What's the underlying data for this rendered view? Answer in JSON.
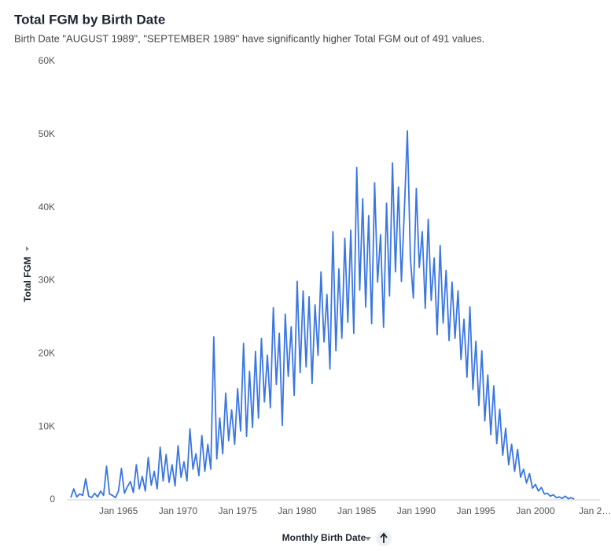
{
  "chart_data": {
    "type": "line",
    "title": "Total FGM by Birth Date",
    "subtitle": "Birth Date \"AUGUST 1989\", \"SEPTEMBER 1989\" have significantly higher Total FGM out of 491 values.",
    "x_label": "Monthly Birth Date",
    "y_label": "Total FGM",
    "x": [
      "1961-01",
      "1961-04",
      "1961-07",
      "1961-10",
      "1962-01",
      "1962-04",
      "1962-07",
      "1962-10",
      "1963-01",
      "1963-04",
      "1963-07",
      "1963-10",
      "1964-01",
      "1964-04",
      "1964-07",
      "1964-10",
      "1965-01",
      "1965-04",
      "1965-07",
      "1965-10",
      "1966-01",
      "1966-04",
      "1966-07",
      "1966-10",
      "1967-01",
      "1967-04",
      "1967-07",
      "1967-10",
      "1968-01",
      "1968-04",
      "1968-07",
      "1968-10",
      "1969-01",
      "1969-04",
      "1969-07",
      "1969-10",
      "1970-01",
      "1970-04",
      "1970-07",
      "1970-10",
      "1971-01",
      "1971-04",
      "1971-07",
      "1971-10",
      "1972-01",
      "1972-04",
      "1972-07",
      "1972-10",
      "1973-01",
      "1973-04",
      "1973-07",
      "1973-10",
      "1974-01",
      "1974-04",
      "1974-07",
      "1974-10",
      "1975-01",
      "1975-04",
      "1975-07",
      "1975-10",
      "1976-01",
      "1976-04",
      "1976-07",
      "1976-10",
      "1977-01",
      "1977-04",
      "1977-07",
      "1977-10",
      "1978-01",
      "1978-04",
      "1978-07",
      "1978-10",
      "1979-01",
      "1979-04",
      "1979-07",
      "1979-10",
      "1980-01",
      "1980-04",
      "1980-07",
      "1980-10",
      "1981-01",
      "1981-04",
      "1981-07",
      "1981-10",
      "1982-01",
      "1982-04",
      "1982-07",
      "1982-10",
      "1983-01",
      "1983-04",
      "1983-07",
      "1983-10",
      "1984-01",
      "1984-04",
      "1984-07",
      "1984-10",
      "1985-01",
      "1985-04",
      "1985-07",
      "1985-10",
      "1986-01",
      "1986-04",
      "1986-07",
      "1986-10",
      "1987-01",
      "1987-04",
      "1987-07",
      "1987-10",
      "1988-01",
      "1988-04",
      "1988-07",
      "1988-10",
      "1989-01",
      "1989-04",
      "1989-07",
      "1989-10",
      "1990-01",
      "1990-04",
      "1990-07",
      "1990-10",
      "1991-01",
      "1991-04",
      "1991-07",
      "1991-10",
      "1992-01",
      "1992-04",
      "1992-07",
      "1992-10",
      "1993-01",
      "1993-04",
      "1993-07",
      "1993-10",
      "1994-01",
      "1994-04",
      "1994-07",
      "1994-10",
      "1995-01",
      "1995-04",
      "1995-07",
      "1995-10",
      "1996-01",
      "1996-04",
      "1996-07",
      "1996-10",
      "1997-01",
      "1997-04",
      "1997-07",
      "1997-10",
      "1998-01",
      "1998-04",
      "1998-07",
      "1998-10",
      "1999-01",
      "1999-04",
      "1999-07",
      "1999-10",
      "2000-01",
      "2000-04",
      "2000-07",
      "2000-10",
      "2001-01",
      "2001-04",
      "2001-07",
      "2001-10",
      "2002-01",
      "2002-04",
      "2002-07",
      "2002-10",
      "2003-01",
      "2003-04"
    ],
    "series": [
      {
        "name": "Total FGM",
        "color": "#3b76e1",
        "values": [
          300,
          1500,
          400,
          800,
          600,
          2900,
          500,
          300,
          900,
          400,
          1200,
          600,
          4600,
          800,
          600,
          300,
          1200,
          4300,
          900,
          1800,
          2500,
          1000,
          4800,
          1500,
          3200,
          1200,
          5800,
          2000,
          3900,
          1500,
          7200,
          2600,
          6200,
          2400,
          4800,
          1900,
          7400,
          3100,
          5200,
          2600,
          9700,
          4200,
          6300,
          3300,
          8800,
          3900,
          7600,
          4200,
          22300,
          5600,
          11200,
          6300,
          14600,
          8100,
          12300,
          7600,
          15200,
          9400,
          21400,
          8700,
          17600,
          9900,
          20300,
          11200,
          22100,
          13400,
          19800,
          12600,
          26300,
          15800,
          22800,
          10200,
          25400,
          16900,
          23700,
          14300,
          29900,
          17400,
          28600,
          18200,
          27800,
          15900,
          26700,
          19800,
          31200,
          21600,
          28100,
          17900,
          36700,
          20400,
          31600,
          22100,
          35800,
          24300,
          36900,
          22800,
          45500,
          28700,
          41200,
          26400,
          38900,
          24100,
          43400,
          29800,
          36300,
          23600,
          40600,
          27900,
          46100,
          31200,
          42800,
          29900,
          39800,
          50500,
          33200,
          27600,
          42600,
          31800,
          36700,
          26200,
          38400,
          27300,
          33100,
          22600,
          34800,
          24200,
          31400,
          21800,
          29800,
          22100,
          28600,
          19200,
          24700,
          16800,
          26400,
          15100,
          21700,
          12900,
          20400,
          10800,
          17100,
          8900,
          15600,
          7700,
          12400,
          6100,
          9800,
          4800,
          7600,
          3900,
          6900,
          3100,
          4200,
          2300,
          3600,
          1600,
          2100,
          1200,
          1700,
          800,
          900,
          500,
          700,
          300,
          400,
          200,
          500,
          150,
          300,
          100
        ]
      }
    ],
    "xlim": [
      "1960-09",
      "2005-06"
    ],
    "xticks": [
      {
        "value": "1965-01",
        "label": "Jan 1965"
      },
      {
        "value": "1970-01",
        "label": "Jan 1970"
      },
      {
        "value": "1975-01",
        "label": "Jan 1975"
      },
      {
        "value": "1980-01",
        "label": "Jan 1980"
      },
      {
        "value": "1985-01",
        "label": "Jan 1985"
      },
      {
        "value": "1990-01",
        "label": "Jan 1990"
      },
      {
        "value": "1995-01",
        "label": "Jan 1995"
      },
      {
        "value": "2000-01",
        "label": "Jan 2000"
      },
      {
        "value": "2005-01",
        "label": "Jan 2…"
      }
    ],
    "ylim": [
      0,
      60000
    ],
    "yticks": [
      0,
      {
        "value": 10000,
        "label": "10K"
      },
      {
        "value": 20000,
        "label": "20K"
      },
      {
        "value": 30000,
        "label": "30K"
      },
      {
        "value": 40000,
        "label": "40K"
      },
      {
        "value": 50000,
        "label": "50K"
      },
      {
        "value": 60000,
        "label": "60K"
      }
    ],
    "grid": false
  }
}
